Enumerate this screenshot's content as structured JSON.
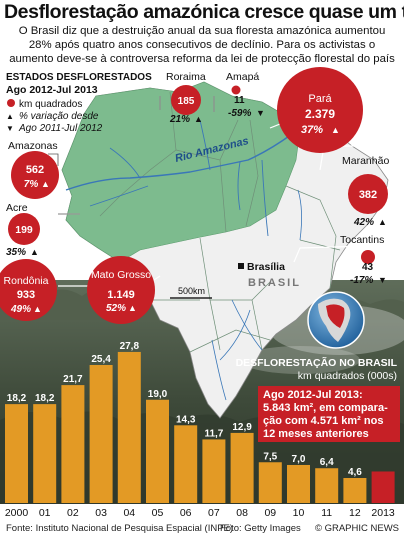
{
  "header": {
    "title": "Desflorestação amazónica cresce quase um terço",
    "intro": [
      "O Brasil diz que a destruição anual da sua floresta amazónica aumentou",
      "28% após quatro anos consecutivos de declínio. Para os activistas o",
      "aumento deve-se à controversa reforma da lei de protecção florestal do país"
    ]
  },
  "map": {
    "legend": {
      "title": "ESTADOS DESFLORESTADOS",
      "period": "Ago 2012-Jul 2013",
      "km_label": "km quadrados",
      "pct_label": "% variação desde",
      "pct_period": "Ago 2011-Jul 2012"
    },
    "country_label": "BRASIL",
    "river_label": "Rio Amazonas",
    "capital_label": "Brasília",
    "scale_label": "500km",
    "colors": {
      "forest": "#7dbb8e",
      "land": "#f0f0f0",
      "river": "#3a77b8",
      "bubble": "#c62026"
    },
    "states": [
      {
        "name": "Roraima",
        "km2": "185",
        "pct": "21%",
        "trend": "▲"
      },
      {
        "name": "Amapá",
        "km2": "11",
        "pct": "-59%",
        "trend": "▼"
      },
      {
        "name": "Pará",
        "km2": "2.379",
        "pct": "37%",
        "trend": "▲"
      },
      {
        "name": "Amazonas",
        "km2": "562",
        "pct": "7%",
        "trend": "▲"
      },
      {
        "name": "Maranhão",
        "km2": "382",
        "pct": "42%",
        "trend": "▲"
      },
      {
        "name": "Acre",
        "km2": "199",
        "pct": "35%",
        "trend": "▲"
      },
      {
        "name": "Tocantins",
        "km2": "43",
        "pct": "-17%",
        "trend": "▼"
      },
      {
        "name": "Rondônia",
        "km2": "933",
        "pct": "49%",
        "trend": "▲"
      },
      {
        "name": "Mato Grosso",
        "km2": "1.149",
        "pct": "52%",
        "trend": "▲"
      }
    ]
  },
  "chart_data": {
    "type": "bar",
    "title": "DESFLORESTAÇÃO NO BRASIL",
    "subtitle": "km quadrados (000s)",
    "categories": [
      "2000",
      "01",
      "02",
      "03",
      "04",
      "05",
      "06",
      "07",
      "08",
      "09",
      "10",
      "11",
      "12",
      "2013"
    ],
    "values": [
      18.2,
      18.2,
      21.7,
      25.4,
      27.8,
      19.0,
      14.3,
      11.7,
      12.9,
      7.5,
      7.0,
      6.4,
      4.6,
      5.8
    ],
    "value_labels": [
      "18,2",
      "18,2",
      "21,7",
      "25,4",
      "27,8",
      "19,0",
      "14,3",
      "11,7",
      "12,9",
      "7,5",
      "7,0",
      "6,4",
      "4,6",
      ""
    ],
    "ylim": [
      0,
      30
    ],
    "highlight_index": 13,
    "colors": {
      "bar": "#e39a25",
      "highlight": "#c62026"
    }
  },
  "callout": {
    "line1": "Ago 2012-Jul 2013:",
    "line2": "5.843 km², em compara-",
    "line3": "ção com 4.571 km² nos",
    "line4": "12 meses anteriores"
  },
  "footer": {
    "source": "Fonte: Instituto Nacional de Pesquisa Espacial (INPE)",
    "photo": "Foto: Getty Images",
    "credit": "© GRAPHIC NEWS"
  }
}
